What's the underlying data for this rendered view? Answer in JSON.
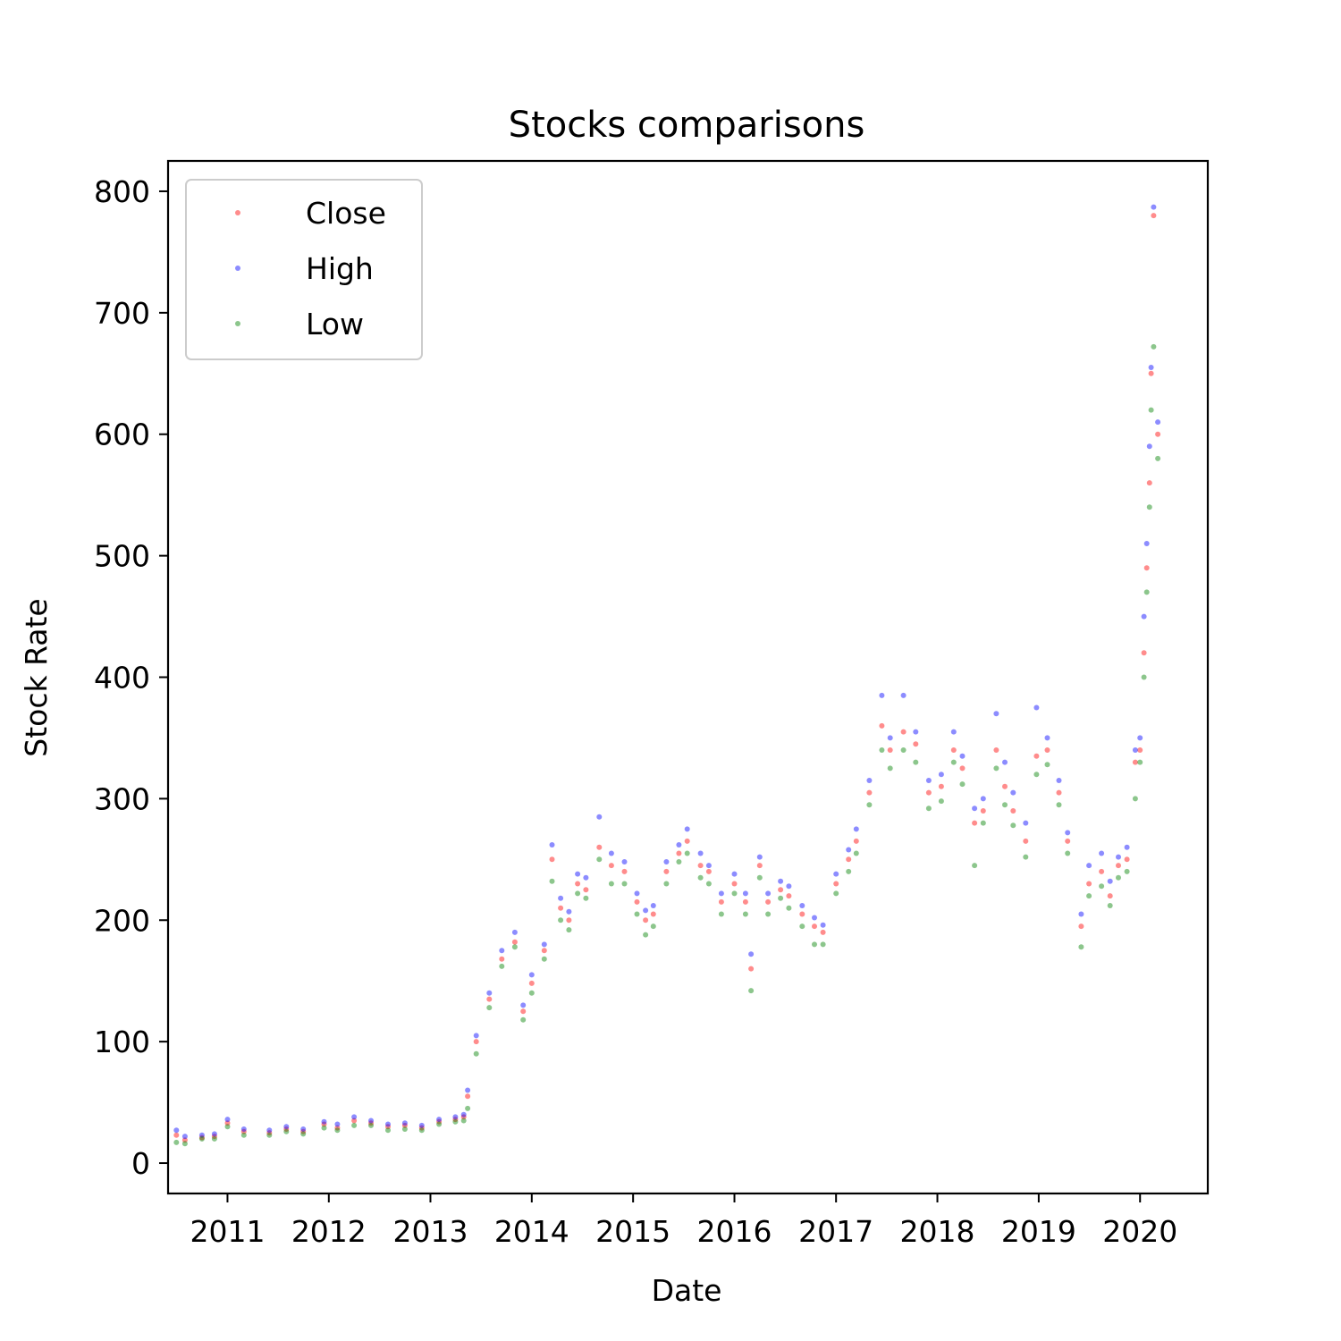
{
  "chart_data": {
    "type": "scatter",
    "title": "Stocks comparisons",
    "xlabel": "Date",
    "ylabel": "Stock Rate",
    "x_axis": "date",
    "xlim": [
      "2010-06-01",
      "2020-09-01"
    ],
    "ylim": [
      -25,
      825
    ],
    "xticks": [
      "2011",
      "2012",
      "2013",
      "2014",
      "2015",
      "2016",
      "2017",
      "2018",
      "2019",
      "2020"
    ],
    "yticks": [
      0,
      100,
      200,
      300,
      400,
      500,
      600,
      700,
      800
    ],
    "grid": false,
    "legend_position": "top-left",
    "series": [
      {
        "name": "Close",
        "color": "#ff0000"
      },
      {
        "name": "High",
        "color": "#0000ff"
      },
      {
        "name": "Low",
        "color": "#008000"
      }
    ],
    "x": [
      "2010-07-01",
      "2010-08-01",
      "2010-10-01",
      "2010-11-15",
      "2011-01-01",
      "2011-03-01",
      "2011-06-01",
      "2011-08-01",
      "2011-10-01",
      "2011-12-15",
      "2012-02-01",
      "2012-04-01",
      "2012-06-01",
      "2012-08-01",
      "2012-10-01",
      "2012-12-01",
      "2013-02-01",
      "2013-04-01",
      "2013-05-01",
      "2013-05-15",
      "2013-06-15",
      "2013-08-01",
      "2013-09-15",
      "2013-11-01",
      "2013-12-01",
      "2014-01-01",
      "2014-02-15",
      "2014-03-15",
      "2014-04-15",
      "2014-05-15",
      "2014-06-15",
      "2014-07-15",
      "2014-09-01",
      "2014-10-15",
      "2014-12-01",
      "2015-01-15",
      "2015-02-15",
      "2015-03-15",
      "2015-05-01",
      "2015-06-15",
      "2015-07-15",
      "2015-09-01",
      "2015-10-01",
      "2015-11-15",
      "2016-01-01",
      "2016-02-10",
      "2016-03-01",
      "2016-04-01",
      "2016-05-01",
      "2016-06-15",
      "2016-07-15",
      "2016-09-01",
      "2016-10-15",
      "2016-11-15",
      "2017-01-01",
      "2017-02-15",
      "2017-03-15",
      "2017-05-01",
      "2017-06-15",
      "2017-07-15",
      "2017-09-01",
      "2017-10-15",
      "2017-12-01",
      "2018-01-15",
      "2018-03-01",
      "2018-04-01",
      "2018-05-15",
      "2018-06-15",
      "2018-08-01",
      "2018-09-01",
      "2018-10-01",
      "2018-11-15",
      "2018-12-24",
      "2019-02-01",
      "2019-03-15",
      "2019-04-15",
      "2019-06-03",
      "2019-07-01",
      "2019-08-15",
      "2019-09-15",
      "2019-10-15",
      "2019-11-15",
      "2019-12-15",
      "2020-01-01",
      "2020-01-15",
      "2020-01-25",
      "2020-02-04",
      "2020-02-10",
      "2020-02-19",
      "2020-03-05"
    ],
    "close": [
      23,
      19,
      21,
      22,
      33,
      26,
      25,
      28,
      26,
      32,
      29,
      35,
      33,
      30,
      31,
      29,
      34,
      36,
      38,
      55,
      100,
      135,
      168,
      182,
      125,
      148,
      175,
      250,
      210,
      200,
      230,
      225,
      260,
      245,
      240,
      215,
      200,
      205,
      240,
      255,
      265,
      245,
      240,
      215,
      230,
      215,
      160,
      245,
      215,
      225,
      220,
      205,
      195,
      190,
      230,
      250,
      265,
      305,
      360,
      340,
      355,
      345,
      305,
      310,
      340,
      325,
      280,
      290,
      340,
      310,
      290,
      265,
      335,
      340,
      305,
      265,
      195,
      230,
      240,
      220,
      245,
      250,
      330,
      340,
      420,
      490,
      560,
      650,
      780,
      600
    ],
    "high": [
      27,
      22,
      23,
      24,
      36,
      28,
      27,
      30,
      28,
      34,
      32,
      38,
      35,
      32,
      33,
      31,
      36,
      38,
      40,
      60,
      105,
      140,
      175,
      190,
      130,
      155,
      180,
      262,
      218,
      207,
      238,
      235,
      285,
      255,
      248,
      222,
      208,
      212,
      248,
      262,
      275,
      255,
      245,
      222,
      238,
      222,
      172,
      252,
      222,
      232,
      228,
      212,
      202,
      196,
      238,
      258,
      275,
      315,
      385,
      350,
      385,
      355,
      315,
      320,
      355,
      335,
      292,
      300,
      370,
      330,
      305,
      280,
      375,
      350,
      315,
      272,
      205,
      245,
      255,
      232,
      252,
      260,
      340,
      350,
      450,
      510,
      590,
      655,
      787,
      610
    ],
    "low": [
      17,
      16,
      20,
      20,
      30,
      23,
      23,
      26,
      24,
      29,
      27,
      31,
      31,
      27,
      28,
      27,
      32,
      34,
      35,
      45,
      90,
      128,
      162,
      178,
      118,
      140,
      168,
      232,
      200,
      192,
      222,
      218,
      250,
      230,
      230,
      205,
      188,
      195,
      230,
      248,
      255,
      235,
      230,
      205,
      222,
      205,
      142,
      235,
      205,
      218,
      210,
      195,
      180,
      180,
      222,
      240,
      255,
      295,
      340,
      325,
      340,
      330,
      292,
      298,
      330,
      312,
      245,
      280,
      325,
      295,
      278,
      252,
      320,
      328,
      295,
      255,
      178,
      220,
      228,
      212,
      235,
      240,
      300,
      330,
      400,
      470,
      540,
      620,
      672,
      580
    ]
  }
}
